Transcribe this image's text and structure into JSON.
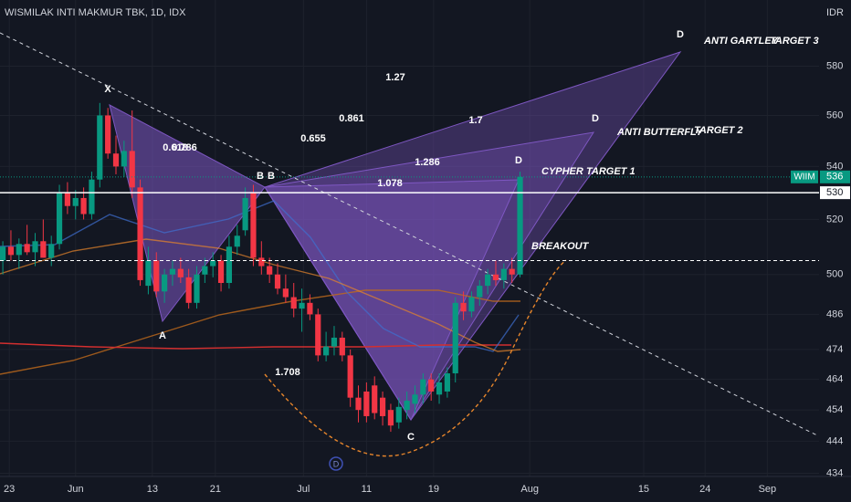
{
  "chart_data": {
    "type": "candlestick",
    "title": "WISMILAK INTI MAKMUR TBK, 1D, IDX",
    "currency": "IDR",
    "symbol": "WIIM",
    "log_scale": true,
    "up_color": "#089981",
    "down_color": "#f23645",
    "open": [
      505,
      510,
      507,
      511,
      508,
      512,
      506,
      511,
      530,
      525,
      528,
      522,
      535,
      560,
      545,
      540,
      546,
      532,
      496,
      505,
      494,
      500,
      502,
      499,
      490,
      500,
      503,
      505,
      497,
      510,
      516,
      530,
      506,
      503,
      500,
      495,
      492,
      488,
      490,
      486,
      472,
      475,
      478,
      472,
      458,
      460,
      462,
      458,
      454,
      450,
      454,
      456,
      459,
      464,
      459,
      460,
      466,
      490,
      487,
      492,
      496,
      500,
      498,
      502,
      500
    ],
    "high": [
      512,
      516,
      513,
      518,
      515,
      520,
      514,
      533,
      534,
      531,
      532,
      538,
      565,
      563,
      552,
      550,
      562,
      535,
      510,
      508,
      502,
      505,
      506,
      502,
      503,
      506,
      508,
      507,
      514,
      518,
      532,
      533,
      512,
      506,
      504,
      500,
      497,
      495,
      493,
      488,
      480,
      482,
      480,
      474,
      462,
      463,
      465,
      460,
      456,
      458,
      460,
      462,
      466,
      466,
      466,
      468,
      492,
      494,
      494,
      498,
      502,
      505,
      504,
      506,
      538
    ],
    "low": [
      500,
      505,
      502,
      507,
      503,
      506,
      503,
      509,
      522,
      520,
      520,
      520,
      532,
      543,
      537,
      536,
      528,
      496,
      493,
      492,
      490,
      496,
      497,
      488,
      488,
      497,
      499,
      494,
      495,
      507,
      514,
      503,
      500,
      497,
      493,
      490,
      485,
      480,
      484,
      470,
      470,
      472,
      470,
      455,
      450,
      450,
      451,
      449,
      447,
      448,
      451,
      453,
      456,
      457,
      456,
      458,
      463,
      484,
      485,
      489,
      493,
      496,
      495,
      497,
      499
    ],
    "close": [
      510,
      507,
      511,
      508,
      512,
      506,
      511,
      530,
      525,
      528,
      522,
      535,
      560,
      545,
      540,
      546,
      532,
      498,
      505,
      494,
      500,
      502,
      499,
      490,
      500,
      503,
      505,
      497,
      510,
      514,
      528,
      506,
      503,
      500,
      495,
      492,
      488,
      490,
      486,
      472,
      475,
      478,
      472,
      458,
      454,
      452,
      453,
      452,
      449,
      455,
      457,
      459,
      464,
      460,
      463,
      466,
      490,
      487,
      492,
      496,
      500,
      498,
      502,
      500,
      536
    ],
    "xlim": [
      -0.35,
      101
    ],
    "xticks": [
      {
        "value": 0.8,
        "label": "23"
      },
      {
        "value": 9,
        "label": "Jun"
      },
      {
        "value": 18.5,
        "label": "13"
      },
      {
        "value": 26.3,
        "label": "21"
      },
      {
        "value": 37.2,
        "label": "Jul"
      },
      {
        "value": 45,
        "label": "11"
      },
      {
        "value": 53.3,
        "label": "19"
      },
      {
        "value": 65.2,
        "label": "Aug"
      },
      {
        "value": 79.3,
        "label": "15"
      },
      {
        "value": 86.9,
        "label": "24"
      },
      {
        "value": 94.6,
        "label": "Sep"
      }
    ],
    "ylim": [
      433,
      608
    ],
    "yticks": [
      434,
      444,
      454,
      464,
      474,
      486,
      500,
      520,
      540,
      560,
      580
    ],
    "last_price": 536,
    "level_line": 530,
    "breakout_level": 505,
    "annotations": [
      "X",
      "A",
      "B",
      "B",
      "C",
      "D",
      "D",
      "D",
      "0.618",
      "0.786",
      "0.655",
      "0.861",
      "1.27",
      "1.7",
      "1.286",
      "1.078",
      "1.708"
    ],
    "labels": [
      "CYPHER",
      "TARGET 1",
      "ANTI BUTTERFLY",
      "TARGET 2",
      "ANTI GARTLEY",
      "TARGET 3",
      "BREAKOUT"
    ],
    "event_marker": "D"
  }
}
